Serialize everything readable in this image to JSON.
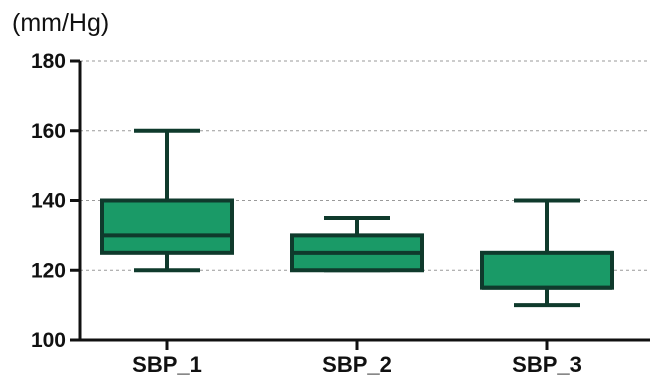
{
  "chart_data": {
    "type": "box",
    "title": "",
    "ylabel": "(mm/Hg)",
    "xlabel": "",
    "ylim": [
      100,
      180
    ],
    "yticks": [
      100,
      120,
      140,
      160,
      180
    ],
    "grid": true,
    "categories": [
      "SBP_1",
      "SBP_2",
      "SBP_3"
    ],
    "boxes": [
      {
        "category": "SBP_1",
        "min": 120,
        "q1": 125,
        "median": 130,
        "q3": 140,
        "max": 160
      },
      {
        "category": "SBP_2",
        "min": 120,
        "q1": 120,
        "median": 125,
        "q3": 130,
        "max": 135
      },
      {
        "category": "SBP_3",
        "min": 110,
        "q1": 115,
        "median": 115,
        "q3": 125,
        "max": 140
      }
    ],
    "colors": {
      "box_fill": "#1a9a67",
      "stroke": "#0f3a2c",
      "axis": "#111111",
      "grid": "#9a9a9a"
    }
  }
}
